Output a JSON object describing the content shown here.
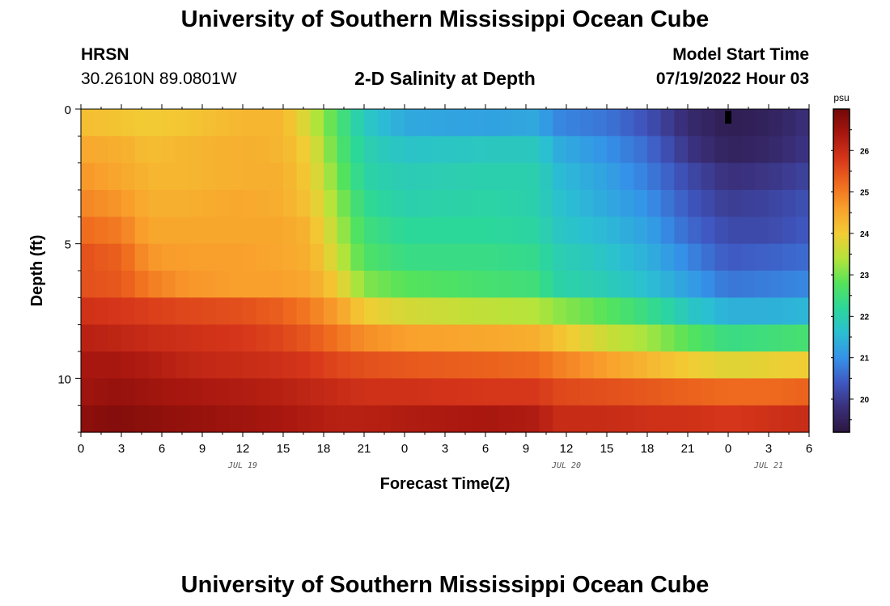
{
  "header": {
    "title_top": "University of Southern Mississippi Ocean Cube",
    "title_bottom": "University of Southern Mississippi Ocean Cube",
    "station": "HRSN",
    "coords": "30.2610N  89.0801W",
    "plot_title": "2-D Salinity at Depth",
    "model_label": "Model Start Time",
    "model_time": "07/19/2022 Hour 03"
  },
  "chart_data": {
    "type": "heatmap",
    "title": "2-D Salinity at Depth",
    "xlabel": "Forecast Time(Z)",
    "ylabel": "Depth (ft)",
    "x_range_hours": [
      0,
      54
    ],
    "y_range_ft": [
      0,
      12
    ],
    "y_inverted": true,
    "xticks": [
      "0",
      "3",
      "6",
      "9",
      "12",
      "15",
      "18",
      "21",
      "0",
      "3",
      "6",
      "9",
      "12",
      "15",
      "18",
      "21",
      "0",
      "3",
      "6"
    ],
    "yticks": [
      {
        "value": 0,
        "label": "0"
      },
      {
        "value": 5,
        "label": "5"
      },
      {
        "value": 10,
        "label": "10"
      }
    ],
    "date_labels": [
      {
        "hour": 12,
        "label": "JUL 19"
      },
      {
        "hour": 36,
        "label": "JUL 20"
      },
      {
        "hour": 51,
        "label": "JUL 21"
      }
    ],
    "colorbar": {
      "unit": "psu",
      "min": 19.2,
      "max": 27,
      "ticks": [
        20,
        21,
        22,
        23,
        24,
        25,
        26
      ],
      "colors": [
        "#2b1640",
        "#3a2f7a",
        "#3f58c2",
        "#3592e8",
        "#2bbfd2",
        "#2cd79a",
        "#55e35a",
        "#b5e43a",
        "#f2cc34",
        "#f9a02c",
        "#ef6a1e",
        "#d6361a",
        "#a8170f",
        "#720808"
      ]
    },
    "depth_rows": [
      0.5,
      1.5,
      2.5,
      3.5,
      4.5,
      5.5,
      6.5,
      7.5,
      8.5,
      9.5,
      10.5,
      11.5
    ],
    "profile": [
      {
        "hour": 0,
        "values": [
          24.2,
          24.5,
          24.7,
          24.9,
          25.2,
          25.5,
          25.5,
          25.9,
          26.2,
          26.4,
          26.5,
          26.7
        ]
      },
      {
        "hour": 3,
        "values": [
          24.1,
          24.4,
          24.5,
          24.7,
          25.0,
          25.3,
          25.4,
          25.8,
          26.1,
          26.4,
          26.6,
          26.8
        ]
      },
      {
        "hour": 5,
        "values": [
          24.0,
          24.2,
          24.3,
          24.4,
          24.5,
          24.7,
          25.0,
          25.7,
          26.0,
          26.3,
          26.5,
          26.7
        ]
      },
      {
        "hour": 8,
        "values": [
          24.1,
          24.3,
          24.3,
          24.4,
          24.5,
          24.6,
          24.7,
          25.6,
          25.9,
          26.1,
          26.4,
          26.6
        ]
      },
      {
        "hour": 12,
        "values": [
          24.3,
          24.4,
          24.4,
          24.5,
          24.5,
          24.6,
          24.6,
          25.5,
          25.8,
          26.0,
          26.3,
          26.5
        ]
      },
      {
        "hour": 15,
        "values": [
          24.3,
          24.3,
          24.4,
          24.4,
          24.5,
          24.5,
          24.6,
          25.3,
          25.6,
          25.9,
          26.2,
          26.4
        ]
      },
      {
        "hour": 17,
        "values": [
          23.6,
          23.9,
          24.0,
          24.1,
          24.3,
          24.4,
          24.5,
          25.0,
          25.4,
          25.8,
          26.1,
          26.3
        ]
      },
      {
        "hour": 19,
        "values": [
          22.7,
          22.8,
          23.0,
          23.2,
          23.4,
          23.6,
          24.0,
          24.6,
          25.1,
          25.6,
          26.0,
          26.2
        ]
      },
      {
        "hour": 21,
        "values": [
          21.8,
          22.0,
          22.1,
          22.3,
          22.5,
          22.7,
          23.1,
          24.0,
          24.8,
          25.5,
          25.9,
          26.2
        ]
      },
      {
        "hour": 24,
        "values": [
          21.3,
          21.7,
          21.9,
          22.0,
          22.2,
          22.4,
          22.8,
          23.7,
          24.6,
          25.4,
          25.9,
          26.3
        ]
      },
      {
        "hour": 30,
        "values": [
          21.2,
          21.8,
          22.0,
          22.1,
          22.2,
          22.4,
          22.6,
          23.5,
          24.5,
          25.3,
          25.8,
          26.4
        ]
      },
      {
        "hour": 34,
        "values": [
          21.3,
          21.8,
          22.0,
          22.0,
          22.1,
          22.3,
          22.5,
          23.4,
          24.4,
          25.2,
          25.8,
          26.3
        ]
      },
      {
        "hour": 35,
        "values": [
          20.9,
          21.4,
          21.6,
          21.7,
          21.8,
          22.0,
          22.1,
          23.2,
          24.2,
          25.0,
          25.6,
          26.0
        ]
      },
      {
        "hour": 39,
        "values": [
          20.7,
          21.0,
          21.2,
          21.3,
          21.5,
          21.7,
          21.9,
          22.8,
          23.6,
          24.6,
          25.5,
          26.0
        ]
      },
      {
        "hour": 42,
        "values": [
          20.3,
          20.6,
          20.8,
          21.0,
          21.2,
          21.4,
          21.6,
          22.4,
          23.3,
          24.3,
          25.4,
          25.9
        ]
      },
      {
        "hour": 45,
        "values": [
          19.7,
          19.9,
          20.2,
          20.4,
          20.6,
          20.9,
          21.2,
          21.8,
          22.8,
          24.0,
          25.3,
          25.9
        ]
      },
      {
        "hour": 48,
        "values": [
          19.4,
          19.5,
          19.8,
          20.0,
          20.2,
          20.4,
          20.7,
          21.4,
          22.4,
          23.8,
          25.2,
          25.8
        ]
      },
      {
        "hour": 51,
        "values": [
          19.5,
          19.6,
          19.9,
          20.1,
          20.2,
          20.5,
          20.8,
          21.4,
          22.5,
          23.9,
          25.2,
          25.9
        ]
      },
      {
        "hour": 54,
        "values": [
          19.8,
          19.9,
          20.1,
          20.3,
          20.4,
          20.6,
          20.9,
          21.5,
          22.6,
          24.0,
          25.3,
          26.0
        ]
      }
    ]
  }
}
